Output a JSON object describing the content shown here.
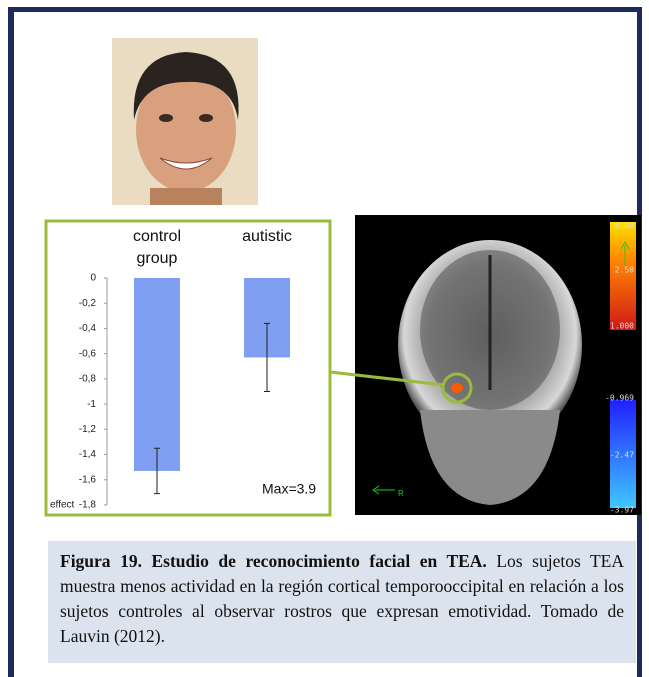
{
  "chart_data": {
    "type": "bar",
    "categories": [
      "control group",
      "autistic"
    ],
    "values": [
      -1.53,
      -0.63
    ],
    "errors": [
      0.18,
      0.27
    ],
    "color": "#809ff2",
    "ylabel": "effect",
    "ylim": [
      -1.8,
      0
    ],
    "yticks": [
      0,
      {
        "value": -0.2,
        "label": "-0,2"
      },
      {
        "value": -0.4,
        "label": "-0,4"
      },
      {
        "value": -0.6,
        "label": "-0,6"
      },
      {
        "value": -0.8,
        "label": "-0,8"
      },
      -1,
      {
        "value": -1.2,
        "label": "-1,2"
      },
      {
        "value": -1.4,
        "label": "-1,4"
      },
      {
        "value": -1.6,
        "label": "-1,6"
      },
      {
        "value": -1.8,
        "label": "-1,8"
      }
    ],
    "annotation": "Max=3.9"
  },
  "brain": {
    "colorbar_labels": [
      "4.00",
      "2.50",
      "1.000",
      "-0.969",
      "-2.47",
      "-3.97"
    ],
    "orientation_label": "R"
  },
  "caption": {
    "title": "Figura 19. Estudio de reconocimiento facial en TEA.",
    "text": "Los sujetos TEA muestra menos actividad en la región cortical temporooccipital en relación a los sujetos controles al observar rostros que expresan emotividad. Tomado de Lauvin (2012)."
  }
}
